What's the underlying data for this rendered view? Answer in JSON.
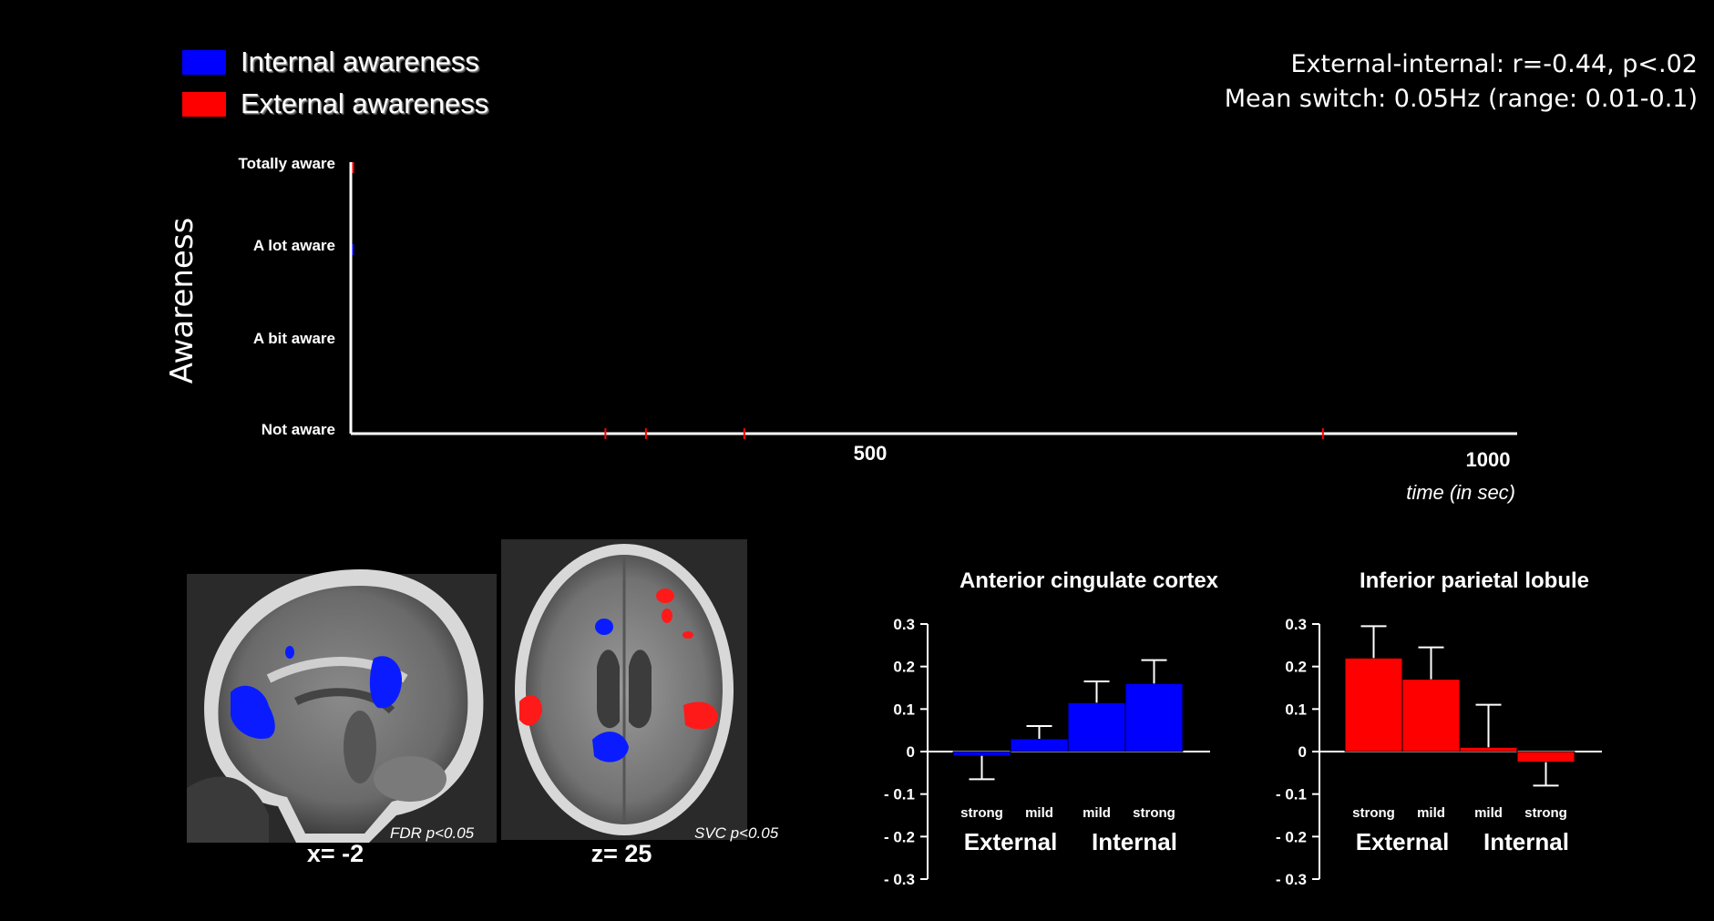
{
  "legend": [
    {
      "label": "Internal awareness",
      "color": "#0000ff"
    },
    {
      "label": "External awareness",
      "color": "#ff0000"
    }
  ],
  "stats": {
    "line1": "External-internal: r=-0.44, p<.02",
    "line2": "Mean switch: 0.05Hz (range: 0.01-0.1)"
  },
  "chart_data": [
    {
      "type": "line",
      "title": "",
      "ylabel": "Awareness",
      "xlabel": "time (in sec)",
      "y_levels": [
        "Not aware",
        "A bit aware",
        "A lot aware",
        "Totally aware"
      ],
      "x_ticks": [
        500,
        1000
      ],
      "xlim": [
        0,
        1000
      ],
      "series": [
        {
          "name": "Internal awareness",
          "color": "#0000ff",
          "points": [
            {
              "x": 2,
              "y": "A lot aware"
            }
          ]
        },
        {
          "name": "External awareness",
          "color": "#ff0000",
          "points": [
            {
              "x": 2,
              "y": "Totally aware"
            },
            {
              "x": 220,
              "y": "Not aware"
            },
            {
              "x": 255,
              "y": "Not aware"
            },
            {
              "x": 340,
              "y": "Not aware"
            },
            {
              "x": 840,
              "y": "Not aware"
            }
          ]
        }
      ]
    },
    {
      "type": "bar",
      "title": "Anterior cingulate cortex",
      "categories": [
        "strong",
        "mild",
        "mild",
        "strong"
      ],
      "groups": [
        "External",
        "Internal"
      ],
      "values": [
        -0.01,
        0.03,
        0.115,
        0.16
      ],
      "errors": [
        0.055,
        0.03,
        0.05,
        0.055
      ],
      "color": "#0000ff",
      "ylim": [
        -0.3,
        0.3
      ],
      "yticks": [
        "0.3",
        "0.2",
        "0.1",
        "0",
        "- 0.1",
        "- 0.2",
        "- 0.3"
      ]
    },
    {
      "type": "bar",
      "title": "Inferior parietal lobule",
      "categories": [
        "strong",
        "mild",
        "mild",
        "strong"
      ],
      "groups": [
        "External",
        "Internal"
      ],
      "values": [
        0.22,
        0.17,
        0.01,
        -0.025
      ],
      "errors": [
        0.075,
        0.075,
        0.1,
        0.055
      ],
      "color": "#ff0000",
      "ylim": [
        -0.3,
        0.3
      ],
      "yticks": [
        "0.3",
        "0.2",
        "0.1",
        "0",
        "- 0.1",
        "- 0.2",
        "- 0.3"
      ]
    }
  ],
  "brain": {
    "sagittal_label": "x= -2",
    "axial_label": "z= 25",
    "fdr_note": "FDR p<0.05",
    "svc_note": "SVC  p<0.05"
  }
}
